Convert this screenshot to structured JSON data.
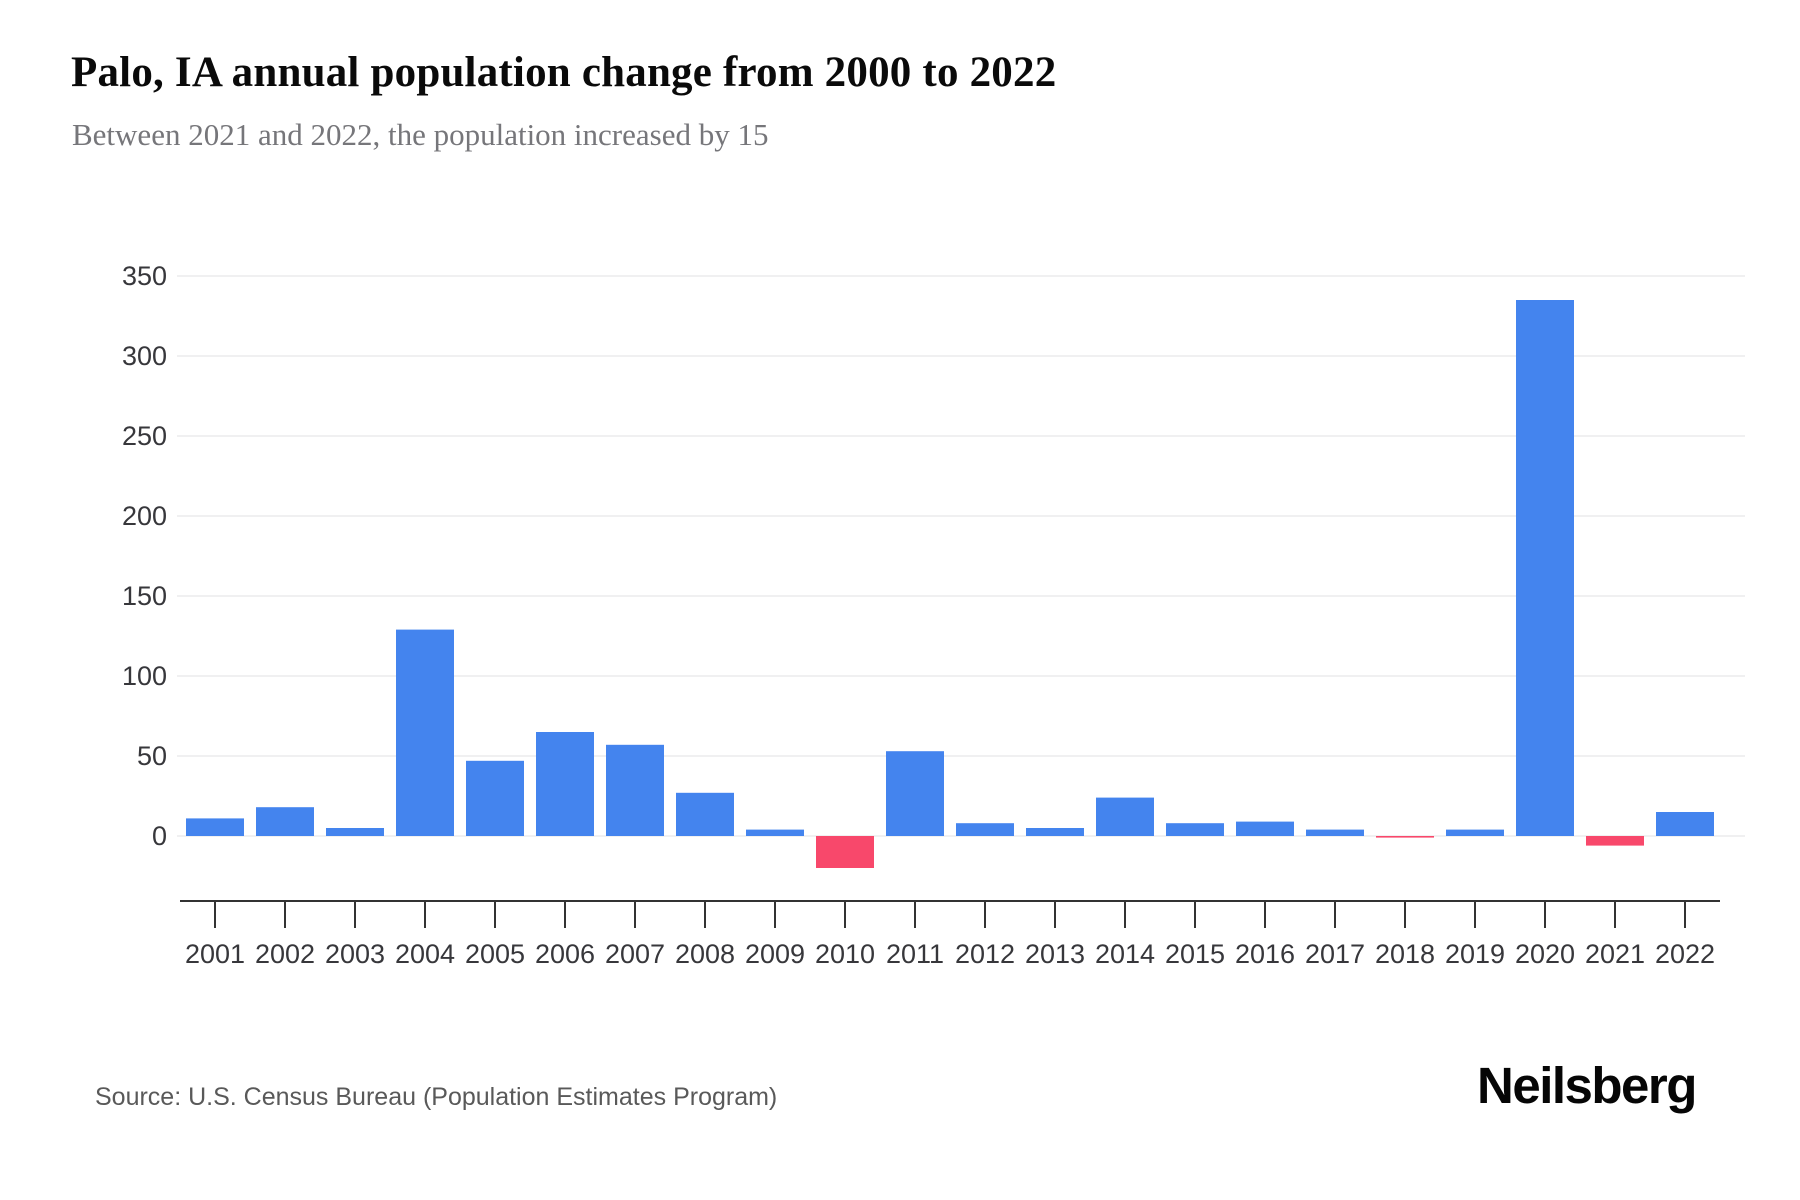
{
  "page": {
    "title": "Palo, IA annual population change from 2000 to 2022",
    "subtitle": "Between 2021 and 2022, the population increased by 15",
    "source": "Source: U.S. Census Bureau (Population Estimates Program)",
    "brand": "Neilsberg"
  },
  "chart_data": {
    "type": "bar",
    "title": "Palo, IA annual population change from 2000 to 2022",
    "subtitle": "Between 2021 and 2022, the population increased by 15",
    "categories": [
      "2001",
      "2002",
      "2003",
      "2004",
      "2005",
      "2006",
      "2007",
      "2008",
      "2009",
      "2010",
      "2011",
      "2012",
      "2013",
      "2014",
      "2015",
      "2016",
      "2017",
      "2018",
      "2019",
      "2020",
      "2021",
      "2022"
    ],
    "values": [
      11,
      18,
      5,
      129,
      47,
      65,
      57,
      27,
      4,
      -20,
      53,
      8,
      5,
      24,
      8,
      9,
      4,
      -1,
      4,
      335,
      -6,
      15
    ],
    "xlabel": "",
    "ylabel": "",
    "yticks": [
      0,
      50,
      100,
      150,
      200,
      250,
      300,
      350
    ],
    "ylim": [
      -45,
      360
    ],
    "grid": true,
    "legend": false,
    "positive_color": "#4484ee",
    "negative_color": "#f8486b",
    "axis_color": "#333333",
    "gridline_color": "#f0f0f1",
    "tick_label_color": "#37373b"
  }
}
